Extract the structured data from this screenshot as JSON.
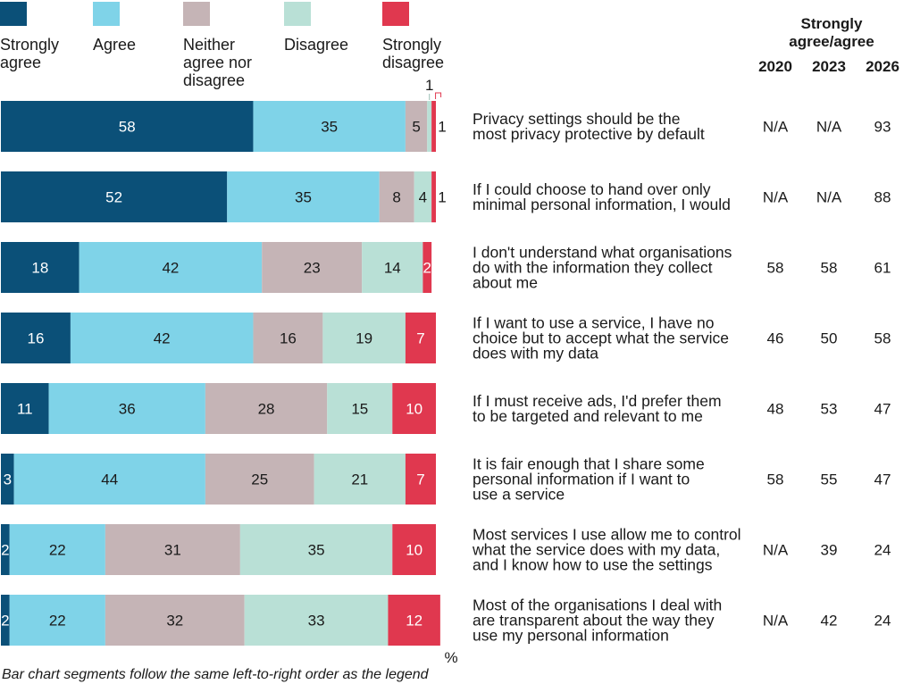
{
  "chart_data": {
    "type": "bar",
    "orientation": "horizontal",
    "stacked": true,
    "xlim": [
      0,
      100
    ],
    "unit": "%",
    "note": "Bar chart segments follow the same left-to-right order as the legend",
    "legend": [
      {
        "name": "Strongly agree",
        "color": "#0b5078"
      },
      {
        "name": "Agree",
        "color": "#7fd3e8"
      },
      {
        "name": "Neither agree nor disagree",
        "color": "#c5b4b6"
      },
      {
        "name": "Disagree",
        "color": "#b9e0d6"
      },
      {
        "name": "Strongly disagree",
        "color": "#e0384f"
      }
    ],
    "summary_header": "Strongly agree/agree",
    "years": [
      "2020",
      "2023",
      "2026"
    ],
    "categories": [
      "Privacy settings should be the most privacy protective by default",
      "If I could choose to hand over only minimal personal information, I would",
      "I don't understand what organisations do with the information they collect about me",
      "If I want to use a service, I have no choice but to accept what the service does with my data",
      "If I must receive ads, I'd prefer them to be targeted and relevant to me",
      "It is fair enough that I share some personal information if I want to use a service",
      "Most services I use allow me to control what the service does with my data, and I know how to use the settings",
      "Most of the organisations I deal with are  transparent about the way they use my personal information"
    ],
    "series": [
      {
        "name": "Strongly agree",
        "values": [
          58,
          52,
          18,
          16,
          11,
          3,
          2,
          2
        ]
      },
      {
        "name": "Agree",
        "values": [
          35,
          35,
          42,
          42,
          36,
          44,
          22,
          22
        ]
      },
      {
        "name": "Neither agree nor disagree",
        "values": [
          5,
          8,
          23,
          16,
          28,
          25,
          31,
          32
        ]
      },
      {
        "name": "Disagree",
        "values": [
          1,
          4,
          14,
          19,
          15,
          21,
          35,
          33
        ]
      },
      {
        "name": "Strongly disagree",
        "values": [
          1,
          1,
          2,
          7,
          10,
          7,
          10,
          12
        ]
      }
    ],
    "summary": [
      [
        "N/A",
        "N/A",
        "93"
      ],
      [
        "N/A",
        "N/A",
        "88"
      ],
      [
        "58",
        "58",
        "61"
      ],
      [
        "46",
        "50",
        "58"
      ],
      [
        "48",
        "53",
        "47"
      ],
      [
        "58",
        "55",
        "47"
      ],
      [
        "N/A",
        "39",
        "24"
      ],
      [
        "N/A",
        "42",
        "24"
      ]
    ]
  }
}
